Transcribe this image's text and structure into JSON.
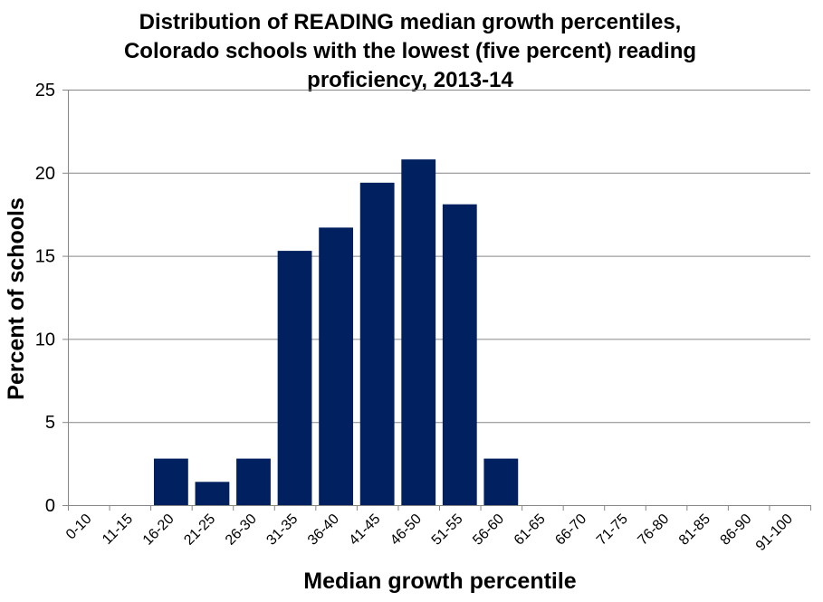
{
  "chart_data": {
    "type": "bar",
    "title_lines": [
      "Distribution of READING median growth percentiles,",
      "Colorado schools with the lowest (five percent) reading",
      "proficiency, 2013-14"
    ],
    "xlabel": "Median growth percentile",
    "ylabel": "Percent of schools",
    "ylim": [
      0,
      25
    ],
    "yticks": [
      0,
      5,
      10,
      15,
      20,
      25
    ],
    "grid": true,
    "legend": "none",
    "categories": [
      "0-10",
      "11-15",
      "16-20",
      "21-25",
      "26-30",
      "31-35",
      "36-40",
      "41-45",
      "46-50",
      "51-55",
      "56-60",
      "61-65",
      "66-70",
      "71-75",
      "76-80",
      "81-85",
      "86-90",
      "91-100"
    ],
    "values": [
      0,
      0,
      2.8,
      1.4,
      2.8,
      15.3,
      16.7,
      19.4,
      20.8,
      18.1,
      2.8,
      0,
      0,
      0,
      0,
      0,
      0,
      0
    ],
    "bar_color": "#002060",
    "grid_color": "#868686",
    "axis_color": "#868686"
  }
}
